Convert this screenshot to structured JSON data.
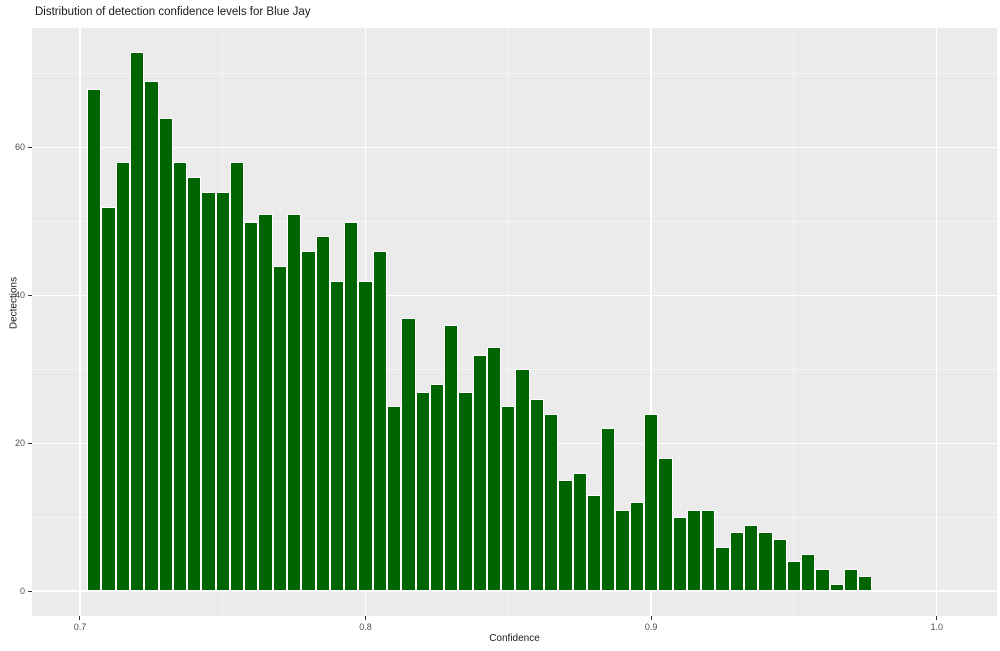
{
  "title": "Distribution of detection confidence levels for Blue Jay",
  "chart_data": {
    "type": "bar",
    "subtype": "histogram",
    "title": "Distribution of detection confidence levels for Blue Jay",
    "xlabel": "Confidence",
    "ylabel": "Dectections",
    "legend": "none",
    "grid": true,
    "bin_width": 0.005,
    "bin_centers": [
      0.705,
      0.71,
      0.715,
      0.72,
      0.725,
      0.73,
      0.735,
      0.74,
      0.745,
      0.75,
      0.755,
      0.76,
      0.765,
      0.77,
      0.775,
      0.78,
      0.785,
      0.79,
      0.795,
      0.8,
      0.805,
      0.81,
      0.815,
      0.82,
      0.825,
      0.83,
      0.835,
      0.84,
      0.845,
      0.85,
      0.855,
      0.86,
      0.865,
      0.87,
      0.875,
      0.88,
      0.885,
      0.89,
      0.895,
      0.9,
      0.905,
      0.91,
      0.915,
      0.92,
      0.925,
      0.93,
      0.935,
      0.94,
      0.945,
      0.95,
      0.955,
      0.96,
      0.965,
      0.97,
      0.975
    ],
    "values": [
      68,
      52,
      58,
      73,
      69,
      64,
      58,
      56,
      54,
      54,
      58,
      50,
      51,
      44,
      51,
      46,
      48,
      42,
      50,
      42,
      46,
      25,
      37,
      27,
      28,
      36,
      27,
      32,
      33,
      25,
      30,
      26,
      24,
      15,
      16,
      13,
      22,
      11,
      12,
      24,
      18,
      10,
      11,
      11,
      6,
      8,
      9,
      8,
      7,
      4,
      5,
      3,
      1,
      3,
      2
    ],
    "x_ticks": [
      0.7,
      0.8,
      0.9,
      1.0
    ],
    "x_tick_labels": [
      "0.7",
      "0.8",
      "0.9",
      "1.0"
    ],
    "y_ticks": [
      0,
      20,
      40,
      60
    ],
    "y_tick_labels": [
      "0",
      "20",
      "40",
      "60"
    ],
    "x_minor_gridlines": [
      0.75,
      0.85,
      0.95
    ],
    "y_minor_gridlines": [
      10,
      30,
      50,
      70
    ],
    "xlim": [
      0.6832,
      1.0211
    ],
    "ylim": [
      -3.38,
      76.2
    ],
    "colors": {
      "bar_fill": "#006400",
      "bar_border": "#ffffff",
      "panel_bg": "#ebebeb",
      "grid_major": "#ffffff",
      "grid_minor": "#f6f6f6",
      "tick_text": "#4d4d4d",
      "axis_text": "#1a1a1a"
    }
  }
}
